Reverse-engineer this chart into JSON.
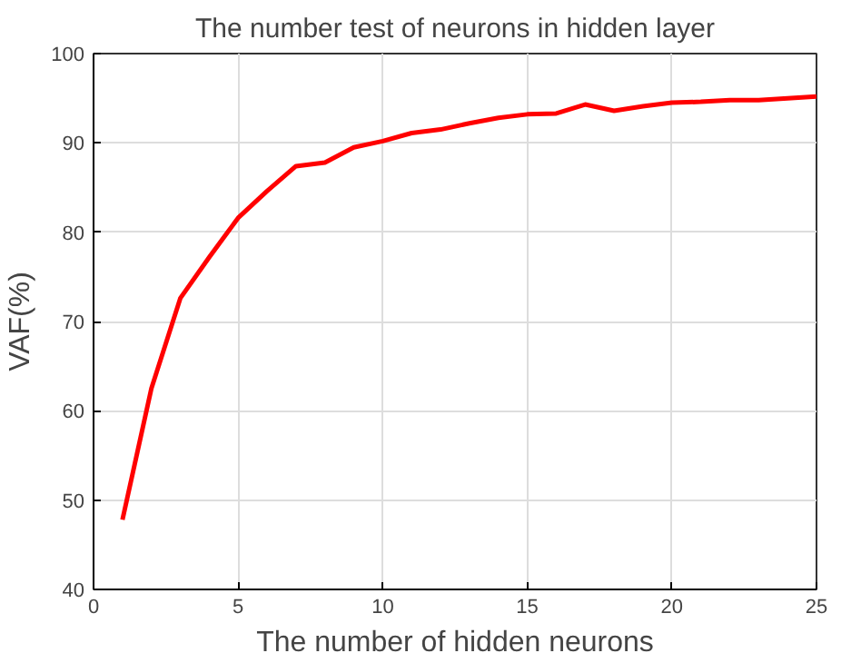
{
  "chart_data": {
    "type": "line",
    "title": "The number test of neurons in hidden layer",
    "xlabel": "The number of hidden neurons",
    "ylabel": "VAF(%)",
    "x": [
      1,
      2,
      3,
      4,
      5,
      6,
      7,
      8,
      9,
      10,
      11,
      12,
      13,
      14,
      15,
      16,
      17,
      18,
      19,
      20,
      21,
      22,
      23,
      24,
      25
    ],
    "series": [
      {
        "color": "#ff0000",
        "values": [
          47.8,
          62.5,
          72.6,
          77.2,
          81.6,
          84.6,
          87.4,
          87.8,
          89.5,
          90.2,
          91.1,
          91.5,
          92.2,
          92.8,
          93.2,
          93.3,
          94.3,
          93.6,
          94.1,
          94.5,
          94.6,
          94.8,
          94.8,
          95.0,
          95.2
        ]
      }
    ],
    "xlim": [
      0,
      25
    ],
    "ylim": [
      40,
      100
    ],
    "xticks": [
      0,
      5,
      10,
      15,
      20,
      25
    ],
    "yticks": [
      40,
      50,
      60,
      70,
      80,
      90,
      100
    ],
    "grid": true,
    "line_style": "solid",
    "marker": "none"
  }
}
